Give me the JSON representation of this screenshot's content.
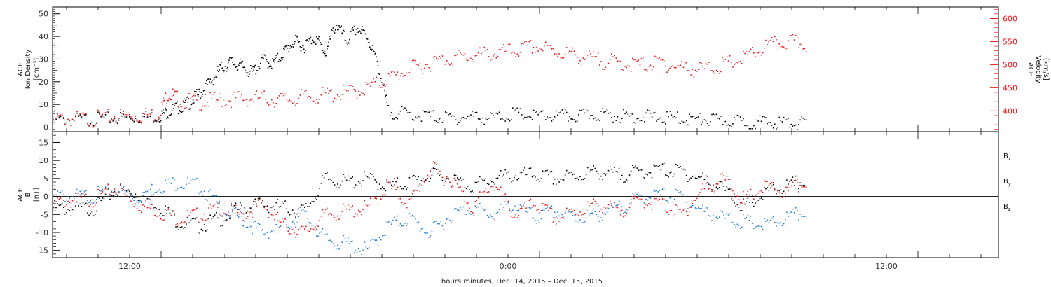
{
  "colors": {
    "black": "#000000",
    "red": "#e8191c",
    "blue": "#1f7fd8"
  },
  "chart_data": [
    {
      "type": "scatter",
      "panel": "top",
      "ylabel_left": [
        "ACE",
        "Ion Density",
        "[cm⁻³]"
      ],
      "ylabel_right": [
        "ACE",
        "Velocity",
        "[km/s]"
      ],
      "ylim_left": [
        -2,
        53
      ],
      "yticks_left": [
        0,
        10,
        20,
        30,
        40,
        50
      ],
      "ylim_right": [
        355,
        625
      ],
      "yticks_right": [
        400,
        450,
        500,
        550,
        600
      ],
      "series": [
        {
          "axis": "left",
          "color": "black",
          "points": [
            [
              0,
              3.5
            ],
            [
              1,
              3.6
            ],
            [
              2,
              3.8
            ],
            [
              3,
              4.2
            ],
            [
              4,
              4.5
            ],
            [
              5,
              4.8
            ],
            [
              5.5,
              7
            ],
            [
              6,
              9
            ],
            [
              6.5,
              11
            ],
            [
              7,
              15
            ],
            [
              7.5,
              20
            ],
            [
              8,
              26
            ],
            [
              8.5,
              29
            ],
            [
              9,
              27
            ],
            [
              9.5,
              24
            ],
            [
              10,
              30
            ],
            [
              10.5,
              28
            ],
            [
              11,
              33
            ],
            [
              11.5,
              38
            ],
            [
              12,
              36
            ],
            [
              12.5,
              40
            ],
            [
              13,
              33
            ],
            [
              13.5,
              46
            ],
            [
              14,
              38
            ],
            [
              14.5,
              44
            ],
            [
              15,
              40
            ],
            [
              15.5,
              28
            ],
            [
              16,
              7
            ],
            [
              17,
              6
            ],
            [
              18,
              5
            ],
            [
              19,
              4
            ],
            [
              20,
              5
            ],
            [
              21,
              4
            ],
            [
              22,
              6
            ],
            [
              23,
              5
            ],
            [
              24,
              5
            ],
            [
              25,
              5
            ],
            [
              26,
              6
            ],
            [
              27,
              5
            ],
            [
              28,
              5
            ],
            [
              29,
              4.5
            ],
            [
              30,
              4
            ],
            [
              31,
              3.5
            ],
            [
              32,
              3
            ],
            [
              33,
              2.5
            ],
            [
              34,
              2.3
            ],
            [
              35,
              2.2
            ],
            [
              36,
              2.0
            ]
          ]
        },
        {
          "axis": "right",
          "color": "red",
          "points": [
            [
              0,
              385
            ],
            [
              1,
              383
            ],
            [
              2,
              384
            ],
            [
              3,
              390
            ],
            [
              4,
              392
            ],
            [
              5,
              393
            ],
            [
              5.5,
              440
            ],
            [
              6,
              425
            ],
            [
              7,
              420
            ],
            [
              8,
              425
            ],
            [
              9,
              428
            ],
            [
              10,
              428
            ],
            [
              11,
              425
            ],
            [
              12,
              430
            ],
            [
              13,
              435
            ],
            [
              14,
              440
            ],
            [
              15,
              450
            ],
            [
              16,
              470
            ],
            [
              17,
              490
            ],
            [
              18,
              505
            ],
            [
              19,
              515
            ],
            [
              20,
              520
            ],
            [
              21,
              525
            ],
            [
              22,
              530
            ],
            [
              23,
              540
            ],
            [
              24,
              530
            ],
            [
              25,
              520
            ],
            [
              26,
              510
            ],
            [
              27,
              505
            ],
            [
              28,
              500
            ],
            [
              29,
              505
            ],
            [
              30,
              495
            ],
            [
              31,
              490
            ],
            [
              32,
              500
            ],
            [
              33,
              515
            ],
            [
              34,
              540
            ],
            [
              35,
              550
            ],
            [
              36,
              545
            ]
          ]
        }
      ]
    },
    {
      "type": "scatter",
      "panel": "bottom",
      "ylabel_left": [
        "ACE",
        "B",
        "[nT]"
      ],
      "ylim": [
        -17,
        18
      ],
      "yticks": [
        -15,
        -10,
        -5,
        0,
        5,
        10,
        15
      ],
      "x_tick_labels": [
        "12:00",
        "0:00",
        "12:00"
      ],
      "legend": [
        {
          "label": "B",
          "sub": "x",
          "color": "black"
        },
        {
          "label": "B",
          "sub": "y",
          "color": "blue"
        },
        {
          "label": "B",
          "sub": "z",
          "color": "red"
        }
      ],
      "legend_position": "right",
      "series": [
        {
          "name": "Bx",
          "color": "black",
          "points": [
            [
              0,
              -3
            ],
            [
              1,
              -3.5
            ],
            [
              2,
              -3
            ],
            [
              3,
              2
            ],
            [
              4,
              1
            ],
            [
              5,
              -2
            ],
            [
              6,
              -7
            ],
            [
              7,
              -8
            ],
            [
              8,
              -6
            ],
            [
              9,
              -3
            ],
            [
              10,
              -2
            ],
            [
              11,
              -3
            ],
            [
              12,
              -4
            ],
            [
              13,
              5
            ],
            [
              14,
              4
            ],
            [
              15,
              5
            ],
            [
              16,
              3
            ],
            [
              17,
              4
            ],
            [
              18,
              6
            ],
            [
              19,
              5
            ],
            [
              20,
              3
            ],
            [
              21,
              5
            ],
            [
              22,
              6
            ],
            [
              23,
              6
            ],
            [
              24,
              5
            ],
            [
              25,
              6
            ],
            [
              26,
              7
            ],
            [
              27,
              6
            ],
            [
              28,
              7
            ],
            [
              29,
              7.5
            ],
            [
              30,
              7
            ],
            [
              31,
              5
            ],
            [
              32,
              2
            ],
            [
              33,
              -3
            ],
            [
              34,
              1
            ],
            [
              35,
              3
            ],
            [
              36,
              4.5
            ]
          ]
        },
        {
          "name": "By",
          "color": "blue",
          "points": [
            [
              0,
              0.5
            ],
            [
              1,
              0
            ],
            [
              2,
              0.5
            ],
            [
              3,
              2.5
            ],
            [
              4,
              0
            ],
            [
              5,
              3
            ],
            [
              6,
              4
            ],
            [
              7,
              3
            ],
            [
              8,
              -3
            ],
            [
              9,
              -6
            ],
            [
              10,
              -10
            ],
            [
              11,
              -8
            ],
            [
              12,
              -5
            ],
            [
              13,
              -12
            ],
            [
              14,
              -13
            ],
            [
              15,
              -15
            ],
            [
              16,
              -8
            ],
            [
              17,
              -6
            ],
            [
              18,
              -10
            ],
            [
              19,
              -5
            ],
            [
              20,
              -3
            ],
            [
              21,
              -5
            ],
            [
              22,
              -2
            ],
            [
              23,
              -6
            ],
            [
              24,
              -4
            ],
            [
              25,
              -6
            ],
            [
              26,
              -5
            ],
            [
              27,
              -3
            ],
            [
              28,
              0
            ],
            [
              29,
              0.5
            ],
            [
              30,
              0
            ],
            [
              31,
              -4
            ],
            [
              32,
              -6
            ],
            [
              33,
              -7
            ],
            [
              34,
              -8
            ],
            [
              35,
              -6
            ],
            [
              36,
              -4
            ]
          ]
        },
        {
          "name": "Bz",
          "color": "red",
          "points": [
            [
              0,
              -1.5
            ],
            [
              1,
              -1
            ],
            [
              2,
              -0.5
            ],
            [
              3,
              2.5
            ],
            [
              4,
              -2
            ],
            [
              5,
              -4
            ],
            [
              6,
              -6
            ],
            [
              7,
              -5
            ],
            [
              8,
              -3
            ],
            [
              9,
              -5
            ],
            [
              10,
              -2
            ],
            [
              11,
              -8
            ],
            [
              12,
              -10
            ],
            [
              13,
              -5
            ],
            [
              14,
              -4
            ],
            [
              15,
              -3
            ],
            [
              16,
              3
            ],
            [
              17,
              -2
            ],
            [
              18,
              8
            ],
            [
              19,
              5
            ],
            [
              20,
              -3
            ],
            [
              21,
              4
            ],
            [
              22,
              -5
            ],
            [
              23,
              -2
            ],
            [
              24,
              -6
            ],
            [
              25,
              -4
            ],
            [
              26,
              -2
            ],
            [
              27,
              -4
            ],
            [
              28,
              -1
            ],
            [
              29,
              -2
            ],
            [
              30,
              -5
            ],
            [
              31,
              2
            ],
            [
              32,
              5
            ],
            [
              33,
              -1
            ],
            [
              34,
              3
            ],
            [
              35,
              1
            ],
            [
              36,
              4.5
            ]
          ]
        }
      ]
    }
  ],
  "xaxis": {
    "label": "hours:minutes, Dec. 14, 2015 – Dec. 15, 2015"
  }
}
